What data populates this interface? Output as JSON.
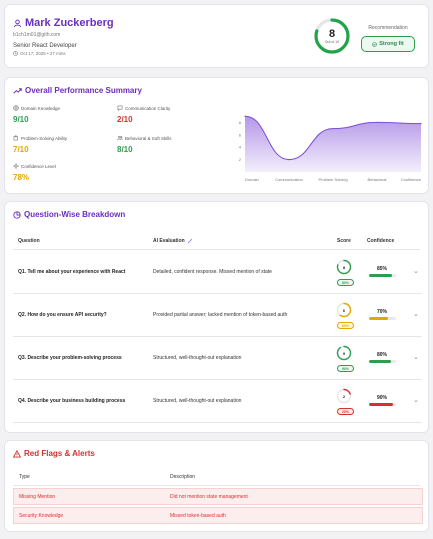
{
  "header": {
    "name": "Mark Zuckerberg",
    "email": "b1ch1m01@gith.com",
    "role": "Senior React Developer",
    "date": "Oct 17, 2025 • 27 mins",
    "score": "8",
    "score_out_of": "Out of 10",
    "score_fraction": 0.8,
    "recommendation_label": "Recommendation",
    "recommendation": "Strong fit"
  },
  "performance": {
    "title": "Overall Performance Summary",
    "metrics": [
      {
        "label": "Domain Knowledge",
        "value": "9/10",
        "color": "#2e9e4e"
      },
      {
        "label": "Communication Clarity",
        "value": "2/10",
        "color": "#d63030"
      },
      {
        "label": "Problem-Solving Ability",
        "value": "7/10",
        "color": "#e0a800"
      },
      {
        "label": "Behavioral & Soft Skills",
        "value": "8/10",
        "color": "#2e9e4e"
      },
      {
        "label": "Confidence Level",
        "value": "78%",
        "color": "#e0a800"
      }
    ]
  },
  "chart_data": {
    "type": "area",
    "categories": [
      "Domain",
      "Communication",
      "Problem Solving",
      "Behavioral",
      "Confidence"
    ],
    "values": [
      9,
      2,
      7,
      8,
      7.8
    ],
    "yticks": [
      "8",
      "6",
      "4",
      "2"
    ],
    "ylim": [
      0,
      10
    ],
    "color": "#9b74e0"
  },
  "breakdown": {
    "title": "Question-Wise Breakdown",
    "columns": {
      "question": "Question",
      "evaluation": "AI Evaluation",
      "score": "Score",
      "confidence": "Confidence"
    },
    "rows": [
      {
        "question": "Q1. Tell me about your experience with React",
        "evaluation": "Detailed, confident response. Missed mention of state",
        "score": "8",
        "percent": "80%",
        "confidence": "85%",
        "confidence_fraction": 0.85,
        "color": "#2e9e4e",
        "bg": "#ecf9f0"
      },
      {
        "question": "Q2. How do you ensure API security?",
        "evaluation": "Provided partial answer; lacked mention of token-based auth",
        "score": "6",
        "percent": "60%",
        "confidence": "70%",
        "confidence_fraction": 0.7,
        "color": "#e0a800",
        "bg": "#fdf7e0"
      },
      {
        "question": "Q3. Describe your problem-solving process",
        "evaluation": "Structured, well-thought-out explanation",
        "score": "9",
        "percent": "90%",
        "confidence": "80%",
        "confidence_fraction": 0.8,
        "color": "#2e9e4e",
        "bg": "#ecf9f0"
      },
      {
        "question": "Q4. Describe your business building process",
        "evaluation": "Structured, well-thought-out explanation",
        "score": "2",
        "percent": "20%",
        "confidence": "90%",
        "confidence_fraction": 0.9,
        "color": "#d63030",
        "bg": "#fdeeee"
      }
    ]
  },
  "red_flags": {
    "title": "Red Flags & Alerts",
    "columns": {
      "type": "Type",
      "description": "Description"
    },
    "rows": [
      {
        "type": "Missing Mention",
        "description": "Did not mention state management"
      },
      {
        "type": "Security Knowledge",
        "description": "Missed token-based auth"
      }
    ]
  }
}
